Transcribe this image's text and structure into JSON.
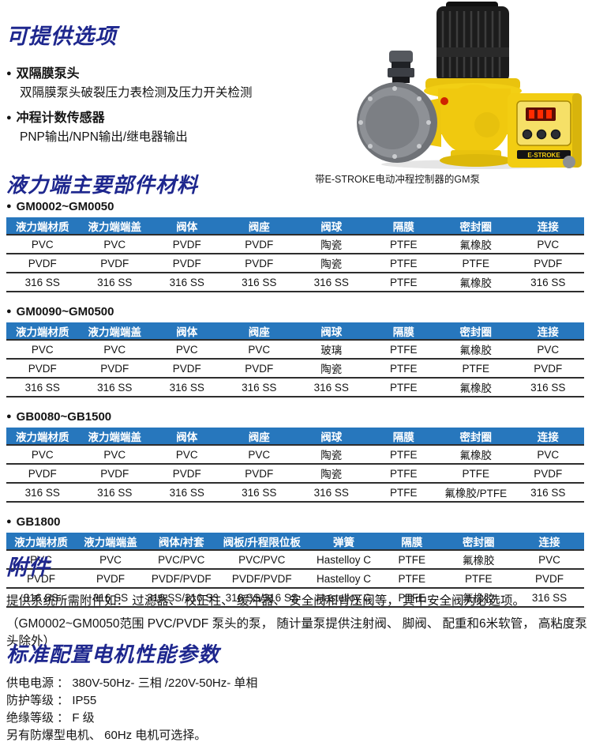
{
  "colors": {
    "heading_navy": "#1e278e",
    "table_header_blue": "#2777bd",
    "pump_yellow": "#f0c90f",
    "display_red": "#e02200"
  },
  "options_section": {
    "title": "可提供选项",
    "items": [
      {
        "label": "双隔膜泵头",
        "detail": "双隔膜泵头破裂压力表检测及压力开关检测"
      },
      {
        "label": "冲程计数传感器",
        "detail": "PNP输出/NPN输出/继电器输出"
      }
    ]
  },
  "pump_image": {
    "caption": "带E-STROKE电动冲程控制器的GM泵",
    "device_label": "E-STROKE"
  },
  "materials_section": {
    "title": "液力端主要部件材料",
    "tables": [
      {
        "model": "GM0002~GM0050",
        "headers": [
          "液力端材质",
          "液力端端盖",
          "阀体",
          "阀座",
          "阀球",
          "隔膜",
          "密封圈",
          "连接"
        ],
        "rows": [
          [
            "PVC",
            "PVC",
            "PVDF",
            "PVDF",
            "陶瓷",
            "PTFE",
            "氟橡胶",
            "PVC"
          ],
          [
            "PVDF",
            "PVDF",
            "PVDF",
            "PVDF",
            "陶瓷",
            "PTFE",
            "PTFE",
            "PVDF"
          ],
          [
            "316 SS",
            "316 SS",
            "316 SS",
            "316 SS",
            "316 SS",
            "PTFE",
            "氟橡胶",
            "316 SS"
          ]
        ]
      },
      {
        "model": "GM0090~GM0500",
        "headers": [
          "液力端材质",
          "液力端端盖",
          "阀体",
          "阀座",
          "阀球",
          "隔膜",
          "密封圈",
          "连接"
        ],
        "rows": [
          [
            "PVC",
            "PVC",
            "PVC",
            "PVC",
            "玻璃",
            "PTFE",
            "氟橡胶",
            "PVC"
          ],
          [
            "PVDF",
            "PVDF",
            "PVDF",
            "PVDF",
            "陶瓷",
            "PTFE",
            "PTFE",
            "PVDF"
          ],
          [
            "316 SS",
            "316 SS",
            "316 SS",
            "316 SS",
            "316 SS",
            "PTFE",
            "氟橡胶",
            "316 SS"
          ]
        ]
      },
      {
        "model": "GB0080~GB1500",
        "headers": [
          "液力端材质",
          "液力端端盖",
          "阀体",
          "阀座",
          "阀球",
          "隔膜",
          "密封圈",
          "连接"
        ],
        "rows": [
          [
            "PVC",
            "PVC",
            "PVC",
            "PVC",
            "陶瓷",
            "PTFE",
            "氟橡胶",
            "PVC"
          ],
          [
            "PVDF",
            "PVDF",
            "PVDF",
            "PVDF",
            "陶瓷",
            "PTFE",
            "PTFE",
            "PVDF"
          ],
          [
            "316 SS",
            "316 SS",
            "316 SS",
            "316 SS",
            "316 SS",
            "PTFE",
            "氟橡胶/PTFE",
            "316 SS"
          ]
        ]
      },
      {
        "model": "GB1800",
        "headers": [
          "液力端材质",
          "液力端端盖",
          "阀体/衬套",
          "阀板/升程限位板",
          "弹簧",
          "隔膜",
          "密封圈",
          "连接"
        ],
        "rows": [
          [
            "PVC",
            "PVC",
            "PVC/PVC",
            "PVC/PVC",
            "Hastelloy C",
            "PTFE",
            "氟橡胶",
            "PVC"
          ],
          [
            "PVDF",
            "PVDF",
            "PVDF/PVDF",
            "PVDF/PVDF",
            "Hastelloy C",
            "PTFE",
            "PTFE",
            "PVDF"
          ],
          [
            "316 SS",
            "316 SS",
            "316 SS/316 SS",
            "316 SS/316 SS",
            "Hastelloy C",
            "PTFE",
            "氟橡胶",
            "316 SS"
          ]
        ]
      }
    ]
  },
  "accessories_section": {
    "title": "附件",
    "line1": "提供系统所需附件如： 过滤器、 校正柱、 缓冲器、 安全阀和背压阀等， 其中安全阀为必选项。",
    "line2": "（GM0002~GM0050范围 PVC/PVDF 泵头的泵， 随计量泵提供注射阀、 脚阀、 配重和6米软管， 高粘度泵头除外）"
  },
  "motor_section": {
    "title": "标准配置电机性能参数",
    "lines": [
      "供电电源 ：  380V-50Hz- 三相 /220V-50Hz- 单相",
      "防护等级 ：  IP55",
      "绝缘等级 ：  F 级",
      "另有防爆型电机、 60Hz 电机可选择。"
    ]
  }
}
